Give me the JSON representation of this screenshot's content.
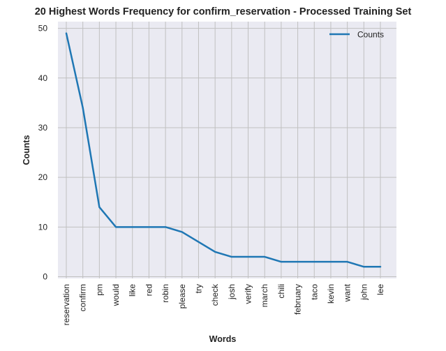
{
  "chart_data": {
    "type": "line",
    "title": "20 Highest Words Frequency for confirm_reservation - Processed Training Set",
    "xlabel": "Words",
    "ylabel": "Counts",
    "categories": [
      "reservation",
      "confirm",
      "pm",
      "would",
      "like",
      "red",
      "robin",
      "please",
      "try",
      "check",
      "josh",
      "verify",
      "march",
      "chili",
      "february",
      "taco",
      "kevin",
      "want",
      "john",
      "lee"
    ],
    "series": [
      {
        "name": "Counts",
        "values": [
          49,
          34,
          14,
          10,
          10,
          10,
          10,
          9,
          7,
          5,
          4,
          4,
          4,
          3,
          3,
          3,
          3,
          3,
          2,
          2
        ],
        "color": "#1f77b4"
      }
    ],
    "yticks": [
      0,
      10,
      20,
      30,
      40,
      50
    ],
    "ylim": [
      -0.35,
      51.35
    ],
    "grid": true,
    "legend_position": "top-right",
    "background_color": "#eaeaf2",
    "grid_color": "#c0c0c0"
  }
}
